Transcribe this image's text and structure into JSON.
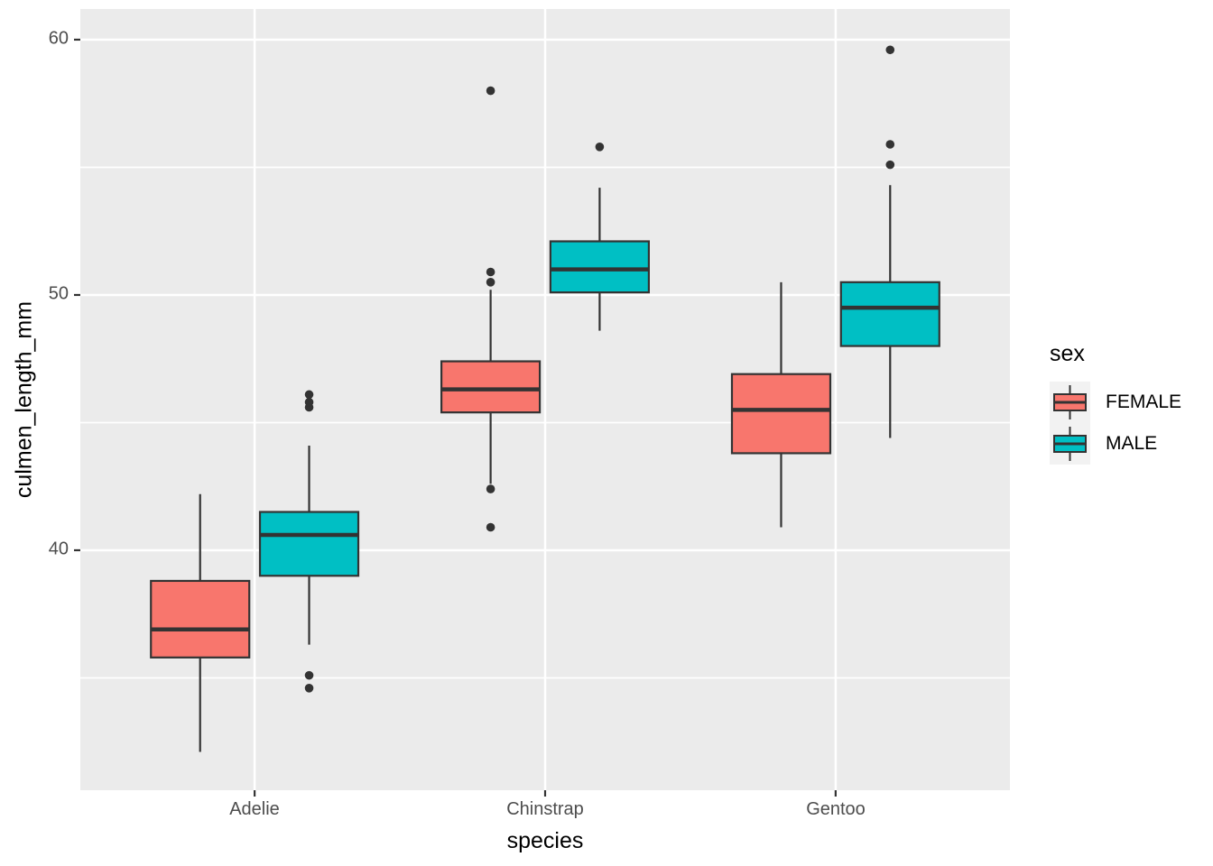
{
  "chart_data": {
    "type": "boxplot",
    "title": "",
    "xlabel": "species",
    "ylabel": "culmen_length_mm",
    "categories": [
      "Adelie",
      "Chinstrap",
      "Gentoo"
    ],
    "ylim": [
      30.6,
      61.2
    ],
    "yticks": [
      40,
      50,
      60
    ],
    "ytick_labels": [
      "40",
      "50",
      "60"
    ],
    "yticks_minor": [
      35,
      45,
      55
    ],
    "grid": true,
    "legend": {
      "title": "sex",
      "position": "right",
      "entries": [
        {
          "label": "FEMALE",
          "color": "#F8766D"
        },
        {
          "label": "MALE",
          "color": "#00BFC4"
        }
      ]
    },
    "series": [
      {
        "name": "FEMALE",
        "color": "#F8766D",
        "boxes": [
          {
            "category": "Adelie",
            "whisker_low": 32.1,
            "q1": 35.8,
            "median": 36.9,
            "q3": 38.8,
            "whisker_high": 42.2,
            "outliers": []
          },
          {
            "category": "Chinstrap",
            "whisker_low": 42.6,
            "q1": 45.4,
            "median": 46.3,
            "q3": 47.4,
            "whisker_high": 50.2,
            "outliers": [
              40.9,
              42.4,
              50.5,
              50.9,
              58.0
            ]
          },
          {
            "category": "Gentoo",
            "whisker_low": 40.9,
            "q1": 43.8,
            "median": 45.5,
            "q3": 46.9,
            "whisker_high": 50.5,
            "outliers": []
          }
        ]
      },
      {
        "name": "MALE",
        "color": "#00BFC4",
        "boxes": [
          {
            "category": "Adelie",
            "whisker_low": 36.3,
            "q1": 39.0,
            "median": 40.6,
            "q3": 41.5,
            "whisker_high": 44.1,
            "outliers": [
              34.6,
              35.1,
              45.6,
              45.8,
              46.1
            ]
          },
          {
            "category": "Chinstrap",
            "whisker_low": 48.6,
            "q1": 50.1,
            "median": 51.0,
            "q3": 52.1,
            "whisker_high": 54.2,
            "outliers": [
              55.8
            ]
          },
          {
            "category": "Gentoo",
            "whisker_low": 44.4,
            "q1": 48.0,
            "median": 49.5,
            "q3": 50.5,
            "whisker_high": 54.3,
            "outliers": [
              55.1,
              55.9,
              59.6
            ]
          }
        ]
      }
    ],
    "colors": {
      "panel_bg": "#EBEBEB",
      "grid": "#FFFFFF",
      "box_stroke": "#333333",
      "outlier": "#333333",
      "tick_mark": "#333333",
      "tick_label": "#4D4D4D",
      "axis_title": "#000000",
      "legend_key_bg": "#F2F2F2"
    }
  }
}
